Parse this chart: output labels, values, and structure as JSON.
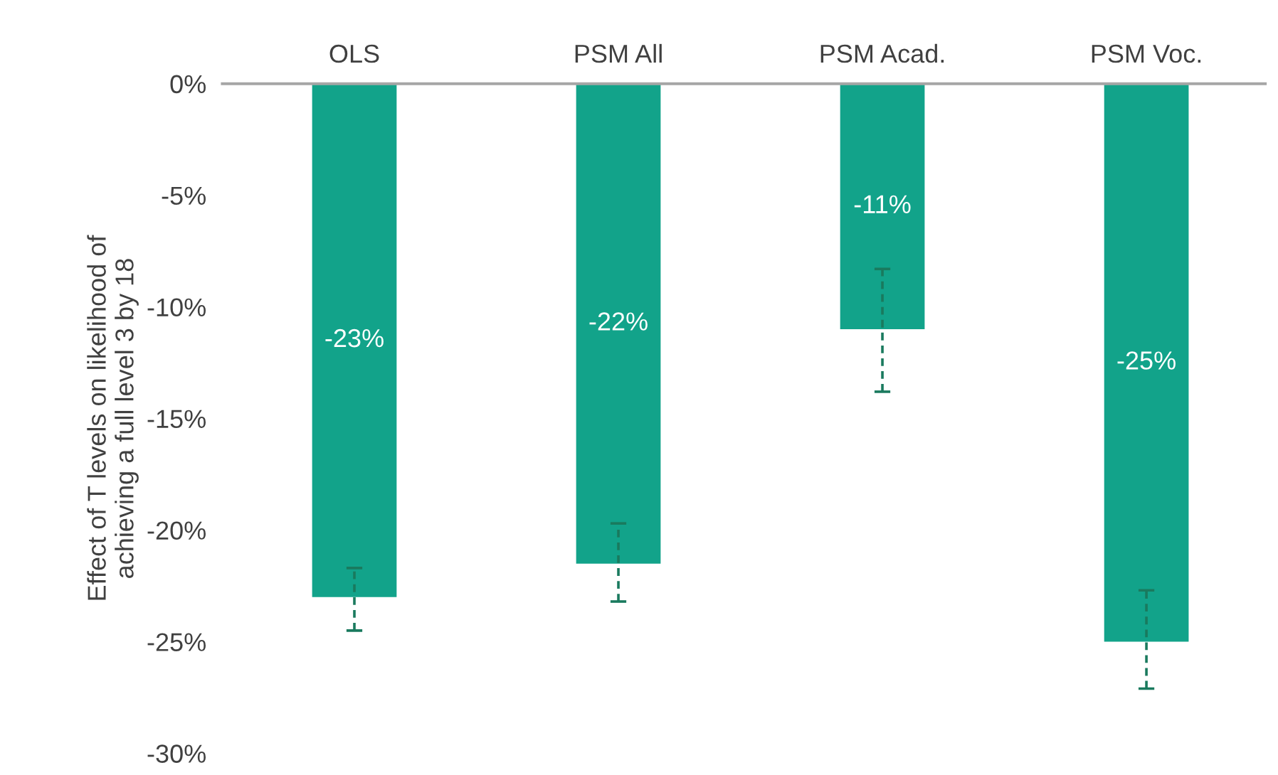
{
  "chart_data": {
    "type": "bar",
    "ylabel": "Effect of T levels on likelihood of\nachieving a full level 3 by 18",
    "categories": [
      "OLS",
      "PSM All",
      "PSM Acad.",
      "PSM Voc."
    ],
    "values": [
      -23.0,
      -21.5,
      -11.0,
      -25.0
    ],
    "value_labels": [
      "-23%",
      "-22%",
      "-11%",
      "-25%"
    ],
    "errors": [
      [
        -24.5,
        -21.7
      ],
      [
        -23.2,
        -19.7
      ],
      [
        -13.8,
        -8.3
      ],
      [
        -27.1,
        -22.7
      ]
    ],
    "color": "#12a38a",
    "ylim": [
      -30,
      0
    ],
    "yticks": [
      {
        "value": 0,
        "label": "0%"
      },
      {
        "value": -5,
        "label": "-5%"
      },
      {
        "value": -10,
        "label": "-10%"
      },
      {
        "value": -15,
        "label": "-15%"
      },
      {
        "value": -20,
        "label": "-20%"
      },
      {
        "value": -25,
        "label": "-25%"
      },
      {
        "value": -30,
        "label": "-30%"
      }
    ],
    "grid": false
  }
}
